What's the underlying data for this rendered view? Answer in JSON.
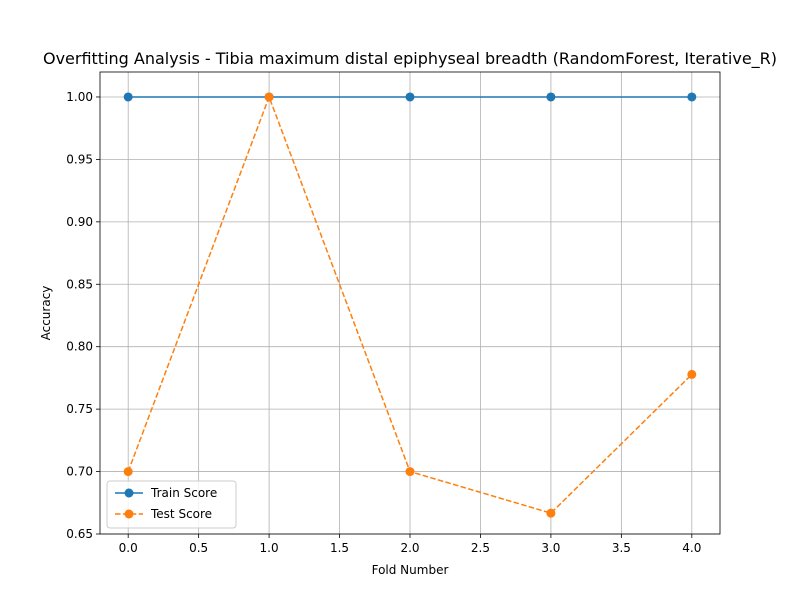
{
  "chart_data": {
    "type": "line",
    "title": "Overfitting Analysis - Tibia maximum distal epiphyseal breadth (RandomForest, Iterative_R)",
    "xlabel": "Fold Number",
    "ylabel": "Accuracy",
    "x": [
      0,
      1,
      2,
      3,
      4
    ],
    "xlim": [
      -0.2,
      4.2
    ],
    "ylim": [
      0.65,
      1.02
    ],
    "xticks": [
      "0.0",
      "0.5",
      "1.0",
      "1.5",
      "2.0",
      "2.5",
      "3.0",
      "3.5",
      "4.0"
    ],
    "yticks": [
      "0.65",
      "0.70",
      "0.75",
      "0.80",
      "0.85",
      "0.90",
      "0.95",
      "1.00"
    ],
    "grid": true,
    "legend_position": "lower-left",
    "series": [
      {
        "name": "Train Score",
        "values": [
          1.0,
          1.0,
          1.0,
          1.0,
          1.0
        ],
        "color": "#1f77b4",
        "linestyle": "solid",
        "marker": "circle"
      },
      {
        "name": "Test Score",
        "values": [
          0.7,
          1.0,
          0.7,
          0.6667,
          0.7778
        ],
        "color": "#ff7f0e",
        "linestyle": "dashed",
        "marker": "circle"
      }
    ]
  }
}
